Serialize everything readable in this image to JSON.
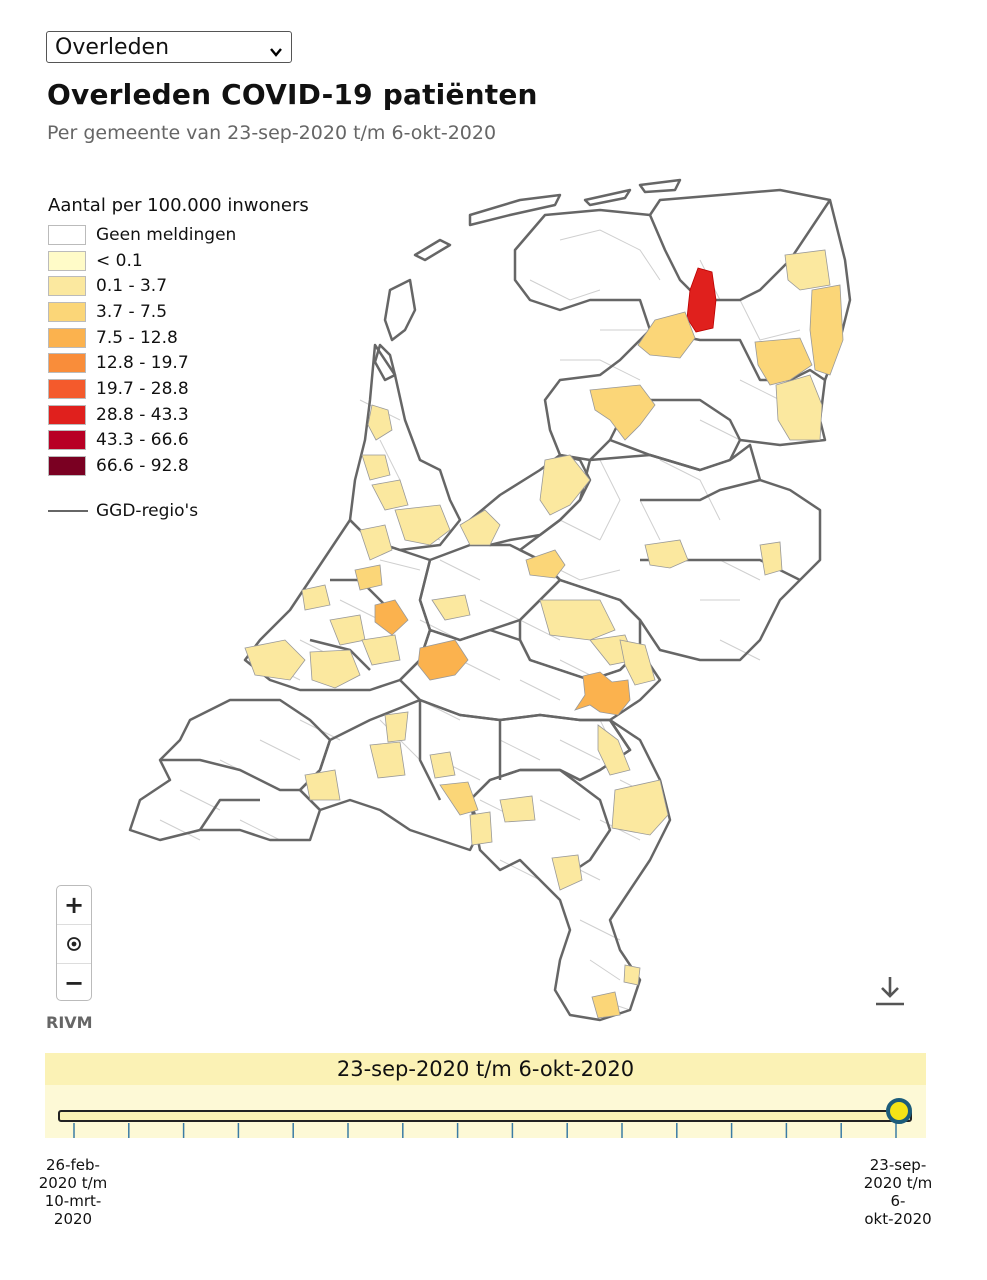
{
  "select": {
    "value": "Overleden",
    "icon": "chevron-down-icon"
  },
  "title": "Overleden COVID-19 patiënten",
  "subtitle": "Per gemeente van 23-sep-2020 t/m 6-okt-2020",
  "legend": {
    "title": "Aantal per 100.000 inwoners",
    "items": [
      {
        "label": "Geen meldingen",
        "color": "#ffffff"
      },
      {
        "label": "< 0.1",
        "color": "#fffbc8"
      },
      {
        "label": "0.1 - 3.7",
        "color": "#fbe89f"
      },
      {
        "label": "3.7 - 7.5",
        "color": "#fbd678"
      },
      {
        "label": "7.5 - 12.8",
        "color": "#fbb24e"
      },
      {
        "label": "12.8 - 19.7",
        "color": "#f98d3a"
      },
      {
        "label": "19.7 - 28.8",
        "color": "#f45a2c"
      },
      {
        "label": "28.8 - 43.3",
        "color": "#e0201d"
      },
      {
        "label": "43.3 - 66.6",
        "color": "#b80025"
      },
      {
        "label": "66.6 - 92.8",
        "color": "#7a0022"
      }
    ],
    "line_label": "GGD-regio's"
  },
  "map": {
    "border_color": "#666666",
    "municipality_border_color": "#c8c8c8"
  },
  "zoom": {
    "zoom_in": "+",
    "zoom_out": "−",
    "icons": [
      "plus-icon",
      "target-icon",
      "minus-icon"
    ]
  },
  "brand": "RIVM",
  "download": {
    "icon": "download-icon"
  },
  "period": {
    "current_label": "23-sep-2020 t/m 6-okt-2020"
  },
  "slider": {
    "start_label_lines": [
      "26-feb-",
      "2020 t/m",
      "10-mrt-",
      "2020"
    ],
    "end_label_lines": [
      "23-sep-",
      "2020 t/m 6-",
      "okt-2020"
    ],
    "position": 1.0,
    "tick_count": 16
  }
}
